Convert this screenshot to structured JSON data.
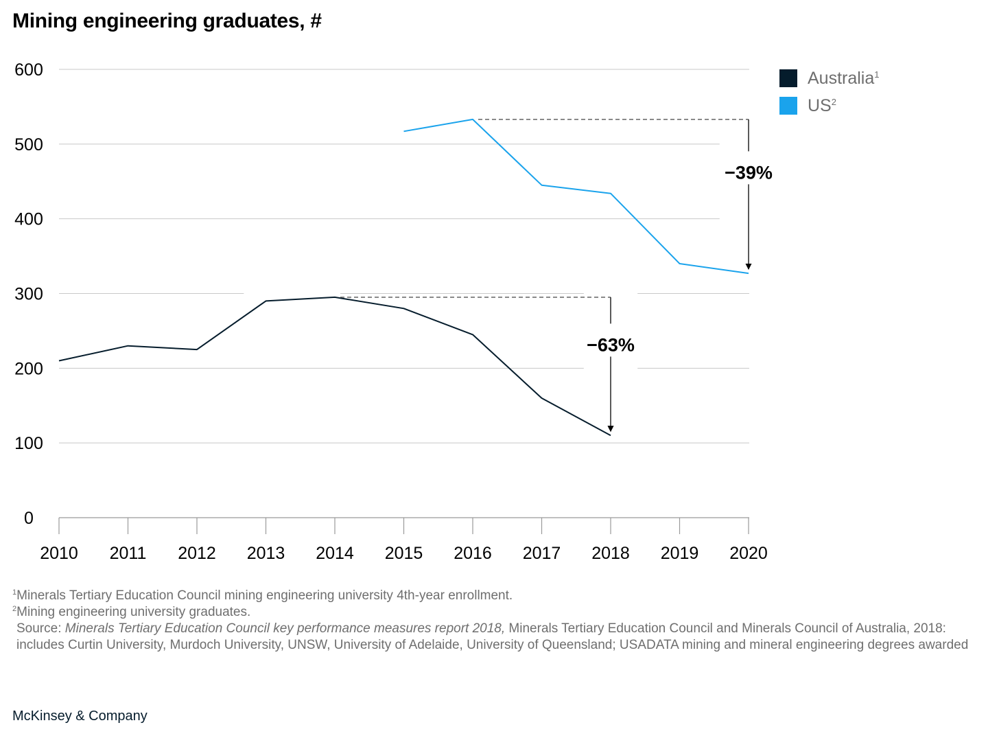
{
  "chart_data": {
    "type": "line",
    "title": "Mining engineering graduates, #",
    "categories": [
      "2010",
      "2011",
      "2012",
      "2013",
      "2014",
      "2015",
      "2016",
      "2017",
      "2018",
      "2019",
      "2020"
    ],
    "y_ticks": [
      "0",
      "100",
      "200",
      "300",
      "400",
      "500",
      "600"
    ],
    "ylim": [
      0,
      600
    ],
    "grid": true,
    "legend_position": "top-right",
    "series": [
      {
        "name": "Australia",
        "footnote_mark": "1",
        "color": "#051c2c",
        "values": [
          210,
          230,
          225,
          290,
          295,
          280,
          245,
          160,
          110,
          null,
          null
        ]
      },
      {
        "name": "US",
        "footnote_mark": "2",
        "color": "#1aa3ec",
        "values": [
          null,
          null,
          null,
          null,
          null,
          517,
          533,
          445,
          434,
          340,
          327
        ]
      }
    ],
    "annotations": [
      {
        "label": "−39%",
        "series": "US",
        "from": "2016",
        "to": "2020"
      },
      {
        "label": "−63%",
        "series": "Australia",
        "from": "2014",
        "to": "2018"
      }
    ]
  },
  "footnotes": {
    "note1_mark": "1",
    "note1": "Minerals Tertiary Education Council mining engineering university 4th-year enrollment.",
    "note2_mark": "2",
    "note2": "Mining engineering university graduates.",
    "source_prefix": "Source: ",
    "source_italic": "Minerals Tertiary Education Council key performance measures report 2018,",
    "source_rest": " Minerals Tertiary Education Council and Minerals Council of Australia, 2018: includes Curtin University, Murdoch University, UNSW, University of Adelaide, University of Queensland; USADATA mining and mineral engineering degrees awarded"
  },
  "brand": "McKinsey & Company"
}
